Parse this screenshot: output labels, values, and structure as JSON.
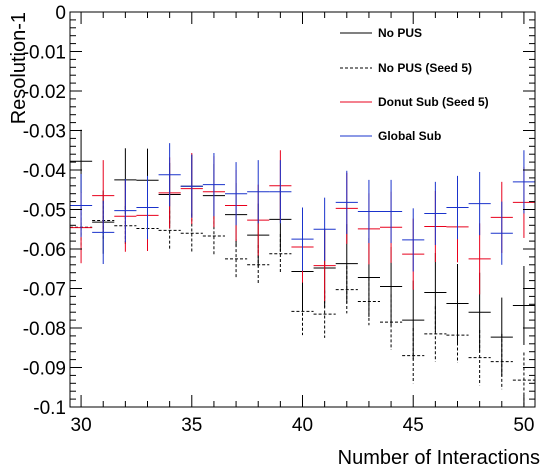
{
  "chart_data": {
    "type": "scatter",
    "title": "",
    "xlabel": "Number of Interactions",
    "ylabel": "Resolution-1",
    "xlim": [
      29.5,
      50.5
    ],
    "ylim": [
      -0.1,
      0
    ],
    "x_ticks": [
      30,
      35,
      40,
      45,
      50
    ],
    "x_tick_labels": [
      "30",
      "35",
      "40",
      "45",
      "50"
    ],
    "y_ticks": [
      0,
      -0.01,
      -0.02,
      -0.03,
      -0.04,
      -0.05,
      -0.06,
      -0.07,
      -0.08,
      -0.09,
      -0.1
    ],
    "y_tick_labels": [
      "0",
      "-0.01",
      "-0.02",
      "-0.03",
      "-0.04",
      "-0.05",
      "-0.06",
      "-0.07",
      "-0.08",
      "-0.09",
      "-0.1"
    ],
    "grid": false,
    "legend_position": "top-right",
    "x": [
      30,
      31,
      32,
      33,
      34,
      35,
      36,
      37,
      38,
      39,
      40,
      41,
      42,
      43,
      44,
      45,
      46,
      47,
      48,
      49,
      50
    ],
    "series": [
      {
        "name": "No PUS",
        "color": "#000000",
        "dash": "solid",
        "values": [
          -0.0378,
          -0.0532,
          -0.0425,
          -0.0426,
          -0.0462,
          -0.0441,
          -0.0465,
          -0.0513,
          -0.0565,
          -0.0525,
          -0.0657,
          -0.0648,
          -0.0637,
          -0.0672,
          -0.0695,
          -0.078,
          -0.071,
          -0.0738,
          -0.076,
          -0.0823,
          -0.0743
        ],
        "errors": [
          0.008,
          0.008,
          0.008,
          0.008,
          0.008,
          0.008,
          0.008,
          0.008,
          0.008,
          0.008,
          0.01,
          0.01,
          0.01,
          0.01,
          0.01,
          0.01,
          0.01,
          0.01,
          0.01,
          0.01,
          0.01
        ]
      },
      {
        "name": "No PUS (Seed 5)",
        "color": "#000000",
        "dash": "dashed",
        "values": [
          -0.0545,
          -0.0528,
          -0.0541,
          -0.0548,
          -0.0553,
          -0.056,
          -0.0567,
          -0.0625,
          -0.064,
          -0.0612,
          -0.0758,
          -0.0765,
          -0.0703,
          -0.0733,
          -0.0785,
          -0.087,
          -0.0815,
          -0.0818,
          -0.0875,
          -0.0885,
          -0.0932
        ],
        "errors": [
          0.005,
          0.005,
          0.005,
          0.005,
          0.005,
          0.005,
          0.005,
          0.005,
          0.005,
          0.005,
          0.006,
          0.006,
          0.006,
          0.006,
          0.007,
          0.007,
          0.007,
          0.007,
          0.007,
          0.007,
          0.007
        ]
      },
      {
        "name": "Donut Sub (Seed 5)",
        "color": "#e8001c",
        "dash": "solid",
        "values": [
          -0.0546,
          -0.0465,
          -0.0517,
          -0.0515,
          -0.0458,
          -0.0447,
          -0.0455,
          -0.049,
          -0.0527,
          -0.044,
          -0.0595,
          -0.0642,
          -0.0497,
          -0.0549,
          -0.0545,
          -0.0613,
          -0.0543,
          -0.0544,
          -0.0625,
          -0.052,
          -0.0482
        ],
        "errors": [
          0.009,
          0.009,
          0.009,
          0.009,
          0.009,
          0.009,
          0.009,
          0.009,
          0.009,
          0.009,
          0.009,
          0.009,
          0.009,
          0.009,
          0.009,
          0.009,
          0.009,
          0.009,
          0.009,
          0.009,
          0.009
        ]
      },
      {
        "name": "Global Sub",
        "color": "#1a33cc",
        "dash": "solid",
        "values": [
          -0.049,
          -0.0558,
          -0.0503,
          -0.0495,
          -0.0412,
          -0.0441,
          -0.0437,
          -0.046,
          -0.0455,
          -0.0455,
          -0.0575,
          -0.055,
          -0.0482,
          -0.0505,
          -0.0505,
          -0.0577,
          -0.051,
          -0.0495,
          -0.0485,
          -0.056,
          -0.043
        ],
        "errors": [
          0.008,
          0.008,
          0.008,
          0.008,
          0.008,
          0.008,
          0.008,
          0.008,
          0.008,
          0.008,
          0.008,
          0.008,
          0.008,
          0.008,
          0.008,
          0.008,
          0.008,
          0.008,
          0.008,
          0.008,
          0.008
        ]
      }
    ]
  }
}
